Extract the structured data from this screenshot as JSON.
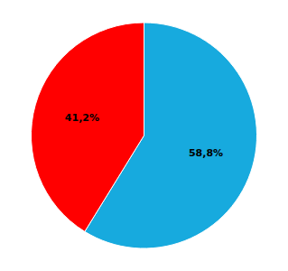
{
  "chart_data": {
    "type": "pie",
    "values": [
      58.8,
      41.2
    ],
    "value_labels": [
      "58,8%",
      "41,2%"
    ],
    "colors": [
      "#17AADE",
      "#FF0000"
    ],
    "data_labels": true
  }
}
